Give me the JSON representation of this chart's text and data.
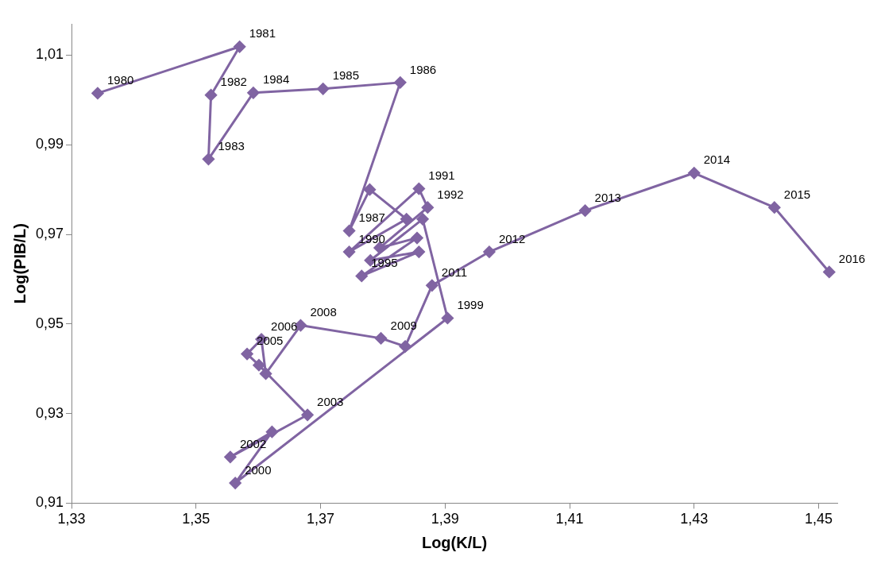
{
  "chart_data": {
    "type": "line",
    "xlabel": "Log(K/L)",
    "ylabel": "Log(PIB/L)",
    "xlim": [
      1.33,
      1.453
    ],
    "ylim": [
      0.91,
      1.017
    ],
    "xticks": [
      {
        "value": 1.33,
        "label": "1,33"
      },
      {
        "value": 1.35,
        "label": "1,35"
      },
      {
        "value": 1.37,
        "label": "1,37"
      },
      {
        "value": 1.39,
        "label": "1,39"
      },
      {
        "value": 1.41,
        "label": "1,41"
      },
      {
        "value": 1.43,
        "label": "1,43"
      },
      {
        "value": 1.45,
        "label": "1,45"
      }
    ],
    "yticks": [
      {
        "value": 0.91,
        "label": "0,91"
      },
      {
        "value": 0.93,
        "label": "0,93"
      },
      {
        "value": 0.95,
        "label": "0,95"
      },
      {
        "value": 0.97,
        "label": "0,97"
      },
      {
        "value": 0.99,
        "label": "0,99"
      },
      {
        "value": 1.01,
        "label": "1,01"
      }
    ],
    "grid": false,
    "legend": false,
    "marker": "diamond",
    "line_style": "solid",
    "series": [
      {
        "color": "#8064a2",
        "x": [
          1.3342,
          1.357,
          1.3524,
          1.352,
          1.3592,
          1.3704,
          1.3828,
          1.3746,
          1.3779,
          1.3838,
          1.3746,
          1.3858,
          1.3872,
          1.3795,
          1.3855,
          1.3766,
          1.3858,
          1.378,
          1.3864,
          1.3904,
          1.3563,
          1.3622,
          1.3555,
          1.3679,
          1.3601,
          1.3582,
          1.3605,
          1.3612,
          1.3668,
          1.3797,
          1.3836,
          1.3879,
          1.3971,
          1.4125,
          1.43,
          1.4429,
          1.4517
        ],
        "values": [
          1.0015,
          1.0119,
          1.0011,
          0.9868,
          1.0016,
          1.0025,
          1.0039,
          0.9708,
          0.98,
          0.9734,
          0.9661,
          0.9802,
          0.976,
          0.967,
          0.9692,
          0.9607,
          0.9661,
          0.9642,
          0.9734,
          0.9513,
          0.9145,
          0.9259,
          0.9203,
          0.9297,
          0.9408,
          0.9433,
          0.9466,
          0.9389,
          0.9497,
          0.9468,
          0.945,
          0.9586,
          0.9661,
          0.9753,
          0.9837,
          0.976,
          0.9616
        ]
      }
    ],
    "annotations": [
      {
        "text": "1980",
        "x": 1.3342,
        "y": 1.0015
      },
      {
        "text": "1981",
        "x": 1.357,
        "y": 1.0119
      },
      {
        "text": "1982",
        "x": 1.3524,
        "y": 1.0011
      },
      {
        "text": "1983",
        "x": 1.352,
        "y": 0.9868
      },
      {
        "text": "1984",
        "x": 1.3592,
        "y": 1.0016
      },
      {
        "text": "1985",
        "x": 1.3704,
        "y": 1.0025
      },
      {
        "text": "1986",
        "x": 1.3828,
        "y": 1.0039
      },
      {
        "text": "1987",
        "x": 1.3746,
        "y": 0.9708
      },
      {
        "text": "1990",
        "x": 1.3746,
        "y": 0.9661
      },
      {
        "text": "1991",
        "x": 1.3858,
        "y": 0.9802
      },
      {
        "text": "1992",
        "x": 1.3872,
        "y": 0.976
      },
      {
        "text": "1995",
        "x": 1.3766,
        "y": 0.9607
      },
      {
        "text": "1999",
        "x": 1.3904,
        "y": 0.9513
      },
      {
        "text": "2000",
        "x": 1.3563,
        "y": 0.9145
      },
      {
        "text": "2002",
        "x": 1.3555,
        "y": 0.9203
      },
      {
        "text": "2003",
        "x": 1.3679,
        "y": 0.9297
      },
      {
        "text": "2005",
        "x": 1.3582,
        "y": 0.9433
      },
      {
        "text": "2006",
        "x": 1.3605,
        "y": 0.9466
      },
      {
        "text": "2008",
        "x": 1.3668,
        "y": 0.9497
      },
      {
        "text": "2009",
        "x": 1.3797,
        "y": 0.9468
      },
      {
        "text": "2011",
        "x": 1.3879,
        "y": 0.9586
      },
      {
        "text": "2012",
        "x": 1.3971,
        "y": 0.9661
      },
      {
        "text": "2013",
        "x": 1.4125,
        "y": 0.9753
      },
      {
        "text": "2014",
        "x": 1.43,
        "y": 0.9837
      },
      {
        "text": "2015",
        "x": 1.4429,
        "y": 0.976
      },
      {
        "text": "2016",
        "x": 1.4517,
        "y": 0.9616
      }
    ]
  }
}
